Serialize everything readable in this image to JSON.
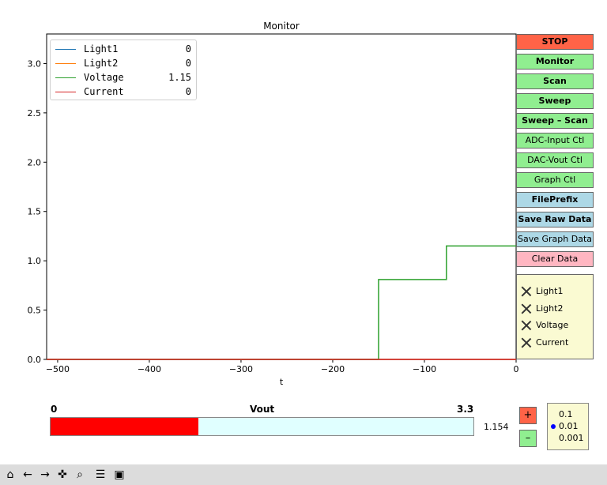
{
  "chart_data": {
    "type": "line",
    "title": "Monitor",
    "xlabel": "t",
    "ylabel": "",
    "xlim": [
      -512,
      0
    ],
    "ylim": [
      0,
      3.3
    ],
    "xticks": [
      -500,
      -400,
      -300,
      -200,
      -100,
      0
    ],
    "xtick_labels": [
      "−500",
      "−400",
      "−300",
      "−200",
      "−100",
      "0"
    ],
    "yticks": [
      0,
      0.5,
      1.0,
      1.5,
      2.0,
      2.5,
      3.0
    ],
    "ytick_labels": [
      "0.0",
      "0.5",
      "1.0",
      "1.5",
      "2.0",
      "2.5",
      "3.0"
    ],
    "grid": false,
    "legend_position": "top-left",
    "series": [
      {
        "name": "Light1",
        "color": "#1f77b4",
        "value_label": "0",
        "x": [
          -512,
          0
        ],
        "y": [
          0,
          0
        ]
      },
      {
        "name": "Light2",
        "color": "#ff7f0e",
        "value_label": "0",
        "x": [
          -512,
          0
        ],
        "y": [
          0,
          0
        ]
      },
      {
        "name": "Voltage",
        "color": "#2ca02c",
        "value_label": "1.15",
        "x": [
          -512,
          -150,
          -150,
          -76,
          -76,
          0
        ],
        "y": [
          0,
          0,
          0.81,
          0.81,
          1.15,
          1.15
        ]
      },
      {
        "name": "Current",
        "color": "#d62728",
        "value_label": "0",
        "x": [
          -512,
          0
        ],
        "y": [
          0,
          0
        ]
      }
    ]
  },
  "buttons": [
    {
      "label": "STOP",
      "color": "#ff6347",
      "bold": true
    },
    {
      "label": "Monitor",
      "color": "#90ee90",
      "bold": true
    },
    {
      "label": "Scan",
      "color": "#90ee90",
      "bold": true
    },
    {
      "label": "Sweep",
      "color": "#90ee90",
      "bold": true
    },
    {
      "label": "Sweep – Scan",
      "color": "#90ee90",
      "bold": true
    },
    {
      "label": "ADC-Input Ctl",
      "color": "#90ee90",
      "bold": false
    },
    {
      "label": "DAC-Vout Ctl",
      "color": "#90ee90",
      "bold": false
    },
    {
      "label": "Graph Ctl",
      "color": "#90ee90",
      "bold": false
    },
    {
      "label": "FilePrefix",
      "color": "#add8e6",
      "bold": true
    },
    {
      "label": "Save Raw Data",
      "color": "#add8e6",
      "bold": true
    },
    {
      "label": "Save Graph Data",
      "color": "#add8e6",
      "bold": false
    },
    {
      "label": "Clear Data",
      "color": "#ffb6c1",
      "bold": false
    }
  ],
  "checks": {
    "items": [
      "Light1",
      "Light2",
      "Voltage",
      "Current"
    ]
  },
  "slider": {
    "label": "Vout",
    "min_label": "0",
    "max_label": "3.3",
    "min": 0,
    "max": 3.3,
    "value": 1.154,
    "value_text": "1.154",
    "fill_color": "#ff0000",
    "track_color": "#e0ffff"
  },
  "step": {
    "plus": "+",
    "minus": "–",
    "plus_color": "#ff6347",
    "minus_color": "#90ee90"
  },
  "step_sizes": {
    "options": [
      "0.1",
      "0.01",
      "0.001"
    ],
    "selected": "0.01"
  },
  "toolbar": {
    "tools": [
      {
        "name": "home-icon",
        "glyph": "⌂"
      },
      {
        "name": "back-icon",
        "glyph": "←"
      },
      {
        "name": "forward-icon",
        "glyph": "→"
      },
      {
        "name": "pan-icon",
        "glyph": "✜"
      },
      {
        "name": "zoom-icon",
        "glyph": "⌕"
      },
      {
        "name": "configure-icon",
        "glyph": "☰"
      },
      {
        "name": "save-icon",
        "glyph": "▣"
      }
    ]
  }
}
